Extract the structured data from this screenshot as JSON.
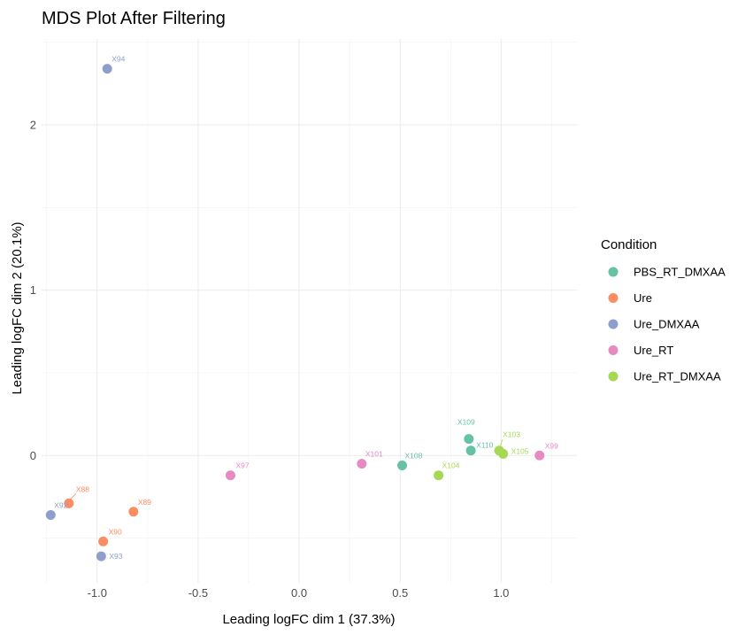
{
  "chart_data": {
    "type": "scatter",
    "title": "MDS Plot After Filtering",
    "xlabel": "Leading logFC dim 1 (37.3%)",
    "ylabel": "Leading logFC dim 2 (20.1%)",
    "xlim": [
      -1.275,
      1.375
    ],
    "ylim": [
      -0.77,
      2.52
    ],
    "xticks": [
      -1.0,
      -0.5,
      0.0,
      0.5,
      1.0
    ],
    "xtick_labels": [
      "-1.0",
      "-0.5",
      "0.0",
      "0.5",
      "1.0"
    ],
    "yticks": [
      0,
      1,
      2
    ],
    "ytick_labels": [
      "0",
      "1",
      "2"
    ],
    "grid": true,
    "legend": {
      "title": "Condition",
      "placement": "right",
      "entries": [
        {
          "name": "PBS_RT_DMXAA",
          "color": "#66C2A5"
        },
        {
          "name": "Ure",
          "color": "#FC8D62"
        },
        {
          "name": "Ure_DMXAA",
          "color": "#8DA0CB"
        },
        {
          "name": "Ure_RT",
          "color": "#E78AC3"
        },
        {
          "name": "Ure_RT_DMXAA",
          "color": "#A6D854"
        }
      ]
    },
    "points": [
      {
        "label": "X94",
        "x": -0.95,
        "y": 2.34,
        "group": "Ure_DMXAA"
      },
      {
        "label": "X88",
        "x": -1.14,
        "y": -0.29,
        "group": "Ure"
      },
      {
        "label": "X92",
        "x": -1.23,
        "y": -0.36,
        "group": "Ure_DMXAA"
      },
      {
        "label": "X89",
        "x": -0.82,
        "y": -0.34,
        "group": "Ure"
      },
      {
        "label": "X90",
        "x": -0.97,
        "y": -0.52,
        "group": "Ure"
      },
      {
        "label": "X93",
        "x": -0.98,
        "y": -0.61,
        "group": "Ure_DMXAA"
      },
      {
        "label": "X97",
        "x": -0.34,
        "y": -0.12,
        "group": "Ure_RT"
      },
      {
        "label": "X101",
        "x": 0.31,
        "y": -0.05,
        "group": "Ure_RT"
      },
      {
        "label": "X108",
        "x": 0.51,
        "y": -0.06,
        "group": "PBS_RT_DMXAA"
      },
      {
        "label": "X104",
        "x": 0.69,
        "y": -0.12,
        "group": "Ure_RT_DMXAA"
      },
      {
        "label": "X109",
        "x": 0.84,
        "y": 0.1,
        "group": "PBS_RT_DMXAA"
      },
      {
        "label": "X110",
        "x": 0.85,
        "y": 0.03,
        "group": "PBS_RT_DMXAA"
      },
      {
        "label": "X103",
        "x": 0.99,
        "y": 0.03,
        "group": "Ure_RT_DMXAA"
      },
      {
        "label": "X105",
        "x": 1.01,
        "y": 0.01,
        "group": "Ure_RT_DMXAA"
      },
      {
        "label": "X99",
        "x": 1.19,
        "y": 0.0,
        "group": "Ure_RT"
      }
    ]
  }
}
